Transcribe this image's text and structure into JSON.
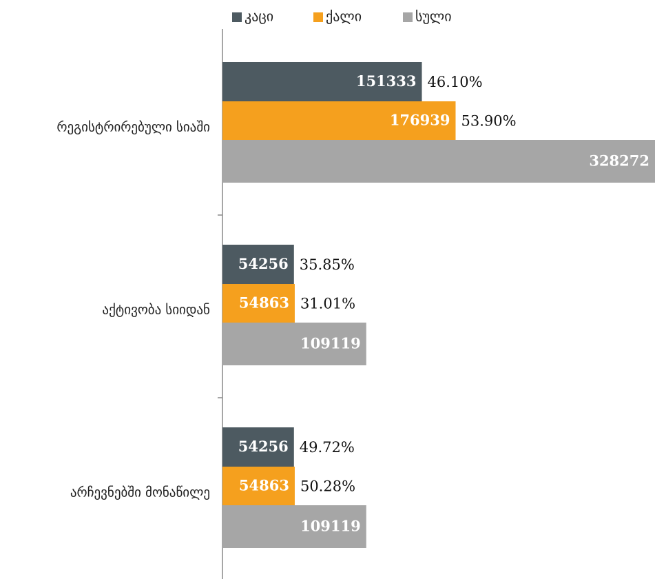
{
  "chart_data": {
    "type": "bar",
    "orientation": "horizontal",
    "categories": [
      "რეგისტრირებული სიაში",
      "აქტივობა სიიდან",
      "არჩევნებში მონაწილე"
    ],
    "series": [
      {
        "name": "კაცი",
        "color": "#4d5a61",
        "values": [
          151333,
          54256,
          54256
        ],
        "share_labels": [
          "46.10%",
          "35.85%",
          "49.72%"
        ]
      },
      {
        "name": "ქალი",
        "color": "#f5a01e",
        "values": [
          176939,
          54863,
          54863
        ],
        "share_labels": [
          "53.90%",
          "31.01%",
          "50.28%"
        ]
      },
      {
        "name": "სული",
        "color": "#a6a6a6",
        "values": [
          328272,
          109119,
          109119
        ]
      }
    ],
    "xlim": [
      0,
      328272
    ],
    "legend": "top"
  }
}
